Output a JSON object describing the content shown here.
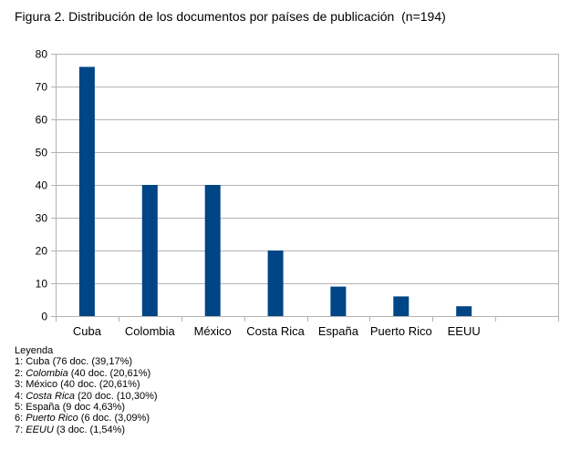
{
  "title": "Figura 2. Distribución de los documentos por países de publicación  (n=194)",
  "chart_data": {
    "type": "bar",
    "categories": [
      "Cuba",
      "Colombia",
      "México",
      "Costa Rica",
      "España",
      "Puerto Rico",
      "EEUU",
      ""
    ],
    "values": [
      76,
      40,
      40,
      20,
      9,
      6,
      3,
      null
    ],
    "ylim": [
      0,
      80
    ],
    "yticks": [
      0,
      10,
      20,
      30,
      40,
      50,
      60,
      70,
      80
    ],
    "grid": true,
    "bar_color": "#004586"
  },
  "legend": {
    "heading": "Leyenda",
    "items": [
      {
        "num": "1: ",
        "name": "Cuba",
        "italic": false,
        "detail": " (76 doc. (39,17%)"
      },
      {
        "num": "2: ",
        "name": "Colombia",
        "italic": true,
        "detail": " (40 doc. (20,61%)"
      },
      {
        "num": "3: ",
        "name": "México",
        "italic": false,
        "detail": " (40 doc. (20,61%)"
      },
      {
        "num": "4: ",
        "name": "Costa Rica",
        "italic": true,
        "detail": " (20 doc. (10,30%)"
      },
      {
        "num": "5: ",
        "name": "España",
        "italic": false,
        "detail": " (9 doc 4,63%)"
      },
      {
        "num": "6: ",
        "name": "Puerto Rico",
        "italic": true,
        "detail": " (6 doc. (3,09%)"
      },
      {
        "num": "7: ",
        "name": "EEUU",
        "italic": true,
        "detail": " (3 doc. (1,54%)"
      }
    ]
  }
}
